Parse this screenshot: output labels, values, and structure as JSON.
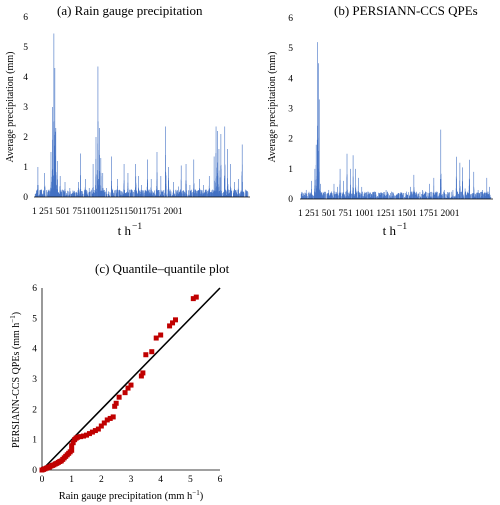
{
  "chart_data": [
    {
      "type": "bar",
      "title": "(a) Rain gauge precipitation",
      "ylabel": "Average precipitation (mm)",
      "xlabel": "t h",
      "xlabel_sup": "−1",
      "ylim": [
        0,
        6
      ],
      "yticks": [
        "0",
        "1",
        "2",
        "3",
        "4",
        "5",
        "6"
      ],
      "xticks": [
        "1",
        "251",
        "501",
        "751",
        "1001",
        "1251",
        "1501",
        "1751",
        "2001"
      ],
      "xtick_text": "1 251 501 7511001125115011751 2001",
      "color": "#4472C4",
      "x_max": 2200,
      "peaks": [
        [
          30,
          1.0
        ],
        [
          100,
          0.8
        ],
        [
          165,
          1.5
        ],
        [
          180,
          3.0
        ],
        [
          195,
          5.45
        ],
        [
          205,
          4.3
        ],
        [
          215,
          2.3
        ],
        [
          230,
          1.2
        ],
        [
          260,
          0.7
        ],
        [
          310,
          0.5
        ],
        [
          360,
          0.3
        ],
        [
          450,
          0.5
        ],
        [
          470,
          1.45
        ],
        [
          520,
          0.6
        ],
        [
          560,
          0.3
        ],
        [
          600,
          1.1
        ],
        [
          630,
          2.0
        ],
        [
          650,
          4.35
        ],
        [
          665,
          2.3
        ],
        [
          680,
          1.3
        ],
        [
          700,
          0.8
        ],
        [
          740,
          0.3
        ],
        [
          790,
          1.35
        ],
        [
          850,
          0.6
        ],
        [
          920,
          1.1
        ],
        [
          960,
          0.8
        ],
        [
          1040,
          1.1
        ],
        [
          1070,
          0.7
        ],
        [
          1100,
          0.4
        ],
        [
          1160,
          1.25
        ],
        [
          1200,
          0.6
        ],
        [
          1260,
          1.5
        ],
        [
          1300,
          0.7
        ],
        [
          1350,
          2.35
        ],
        [
          1380,
          1.0
        ],
        [
          1430,
          0.5
        ],
        [
          1480,
          0.35
        ],
        [
          1510,
          1.05
        ],
        [
          1560,
          1.1
        ],
        [
          1600,
          0.4
        ],
        [
          1640,
          1.25
        ],
        [
          1700,
          0.6
        ],
        [
          1740,
          0.4
        ],
        [
          1800,
          0.7
        ],
        [
          1850,
          1.35
        ],
        [
          1870,
          2.35
        ],
        [
          1885,
          2.2
        ],
        [
          1900,
          1.6
        ],
        [
          1920,
          2.1
        ],
        [
          1960,
          2.35
        ],
        [
          1990,
          1.6
        ],
        [
          2020,
          1.1
        ],
        [
          2060,
          0.5
        ],
        [
          2100,
          0.6
        ],
        [
          2140,
          1.75
        ]
      ]
    },
    {
      "type": "bar",
      "title": "(b) PERSIANN-CCS QPEs",
      "ylabel": "Average precipitation (mm)",
      "xlabel": "t h",
      "xlabel_sup": "−1",
      "ylim": [
        0,
        6
      ],
      "yticks": [
        "0",
        "1",
        "2",
        "3",
        "4",
        "5",
        "6"
      ],
      "xticks": [
        "1",
        "251",
        "501",
        "751",
        "1001",
        "1251",
        "1501",
        "1751",
        "2001"
      ],
      "xtick_text": "1 251 501 751 1001 1251 1501 1751 2001",
      "color": "#4472C4",
      "x_max": 2200,
      "peaks": [
        [
          60,
          0.3
        ],
        [
          120,
          0.6
        ],
        [
          160,
          1.0
        ],
        [
          175,
          1.8
        ],
        [
          190,
          5.2
        ],
        [
          200,
          4.5
        ],
        [
          210,
          3.3
        ],
        [
          225,
          0.5
        ],
        [
          260,
          0.2
        ],
        [
          320,
          0.3
        ],
        [
          380,
          0.5
        ],
        [
          420,
          0.4
        ],
        [
          450,
          1.0
        ],
        [
          490,
          0.6
        ],
        [
          530,
          1.5
        ],
        [
          570,
          1.0
        ],
        [
          600,
          1.45
        ],
        [
          630,
          1.0
        ],
        [
          660,
          0.7
        ],
        [
          700,
          0.4
        ],
        [
          740,
          0.2
        ],
        [
          800,
          0.2
        ],
        [
          900,
          0.2
        ],
        [
          980,
          0.3
        ],
        [
          1030,
          0.2
        ],
        [
          1120,
          0.2
        ],
        [
          1200,
          0.2
        ],
        [
          1260,
          0.4
        ],
        [
          1300,
          0.8
        ],
        [
          1400,
          0.3
        ],
        [
          1480,
          0.5
        ],
        [
          1530,
          0.7
        ],
        [
          1560,
          0.2
        ],
        [
          1610,
          2.3
        ],
        [
          1650,
          0.3
        ],
        [
          1700,
          0.2
        ],
        [
          1750,
          0.3
        ],
        [
          1790,
          1.4
        ],
        [
          1830,
          1.2
        ],
        [
          1860,
          1.05
        ],
        [
          1890,
          0.35
        ],
        [
          1940,
          1.3
        ],
        [
          1990,
          0.9
        ],
        [
          2040,
          0.3
        ],
        [
          2090,
          0.3
        ],
        [
          2140,
          0.7
        ],
        [
          2170,
          0.4
        ]
      ]
    },
    {
      "type": "scatter",
      "title": "(c) Quantile–quantile plot",
      "xlabel": "Rain gauge precipitation (mm h",
      "xlabel_sup": "−1",
      "ylabel": "PERSIANN-CCS QPEs (mm h",
      "ylabel_sup": "−1",
      "xlim": [
        0,
        6
      ],
      "ylim": [
        0,
        6
      ],
      "xticks": [
        "0",
        "1",
        "2",
        "3",
        "4",
        "5",
        "6"
      ],
      "yticks": [
        "0",
        "1",
        "2",
        "3",
        "4",
        "5",
        "6"
      ],
      "marker_color": "#C00000",
      "reference_line": [
        [
          0,
          0
        ],
        [
          6,
          6
        ]
      ],
      "points": [
        [
          0.0,
          0.0
        ],
        [
          0.05,
          0.02
        ],
        [
          0.1,
          0.04
        ],
        [
          0.15,
          0.06
        ],
        [
          0.2,
          0.08
        ],
        [
          0.25,
          0.1
        ],
        [
          0.3,
          0.13
        ],
        [
          0.35,
          0.15
        ],
        [
          0.4,
          0.17
        ],
        [
          0.45,
          0.2
        ],
        [
          0.5,
          0.22
        ],
        [
          0.55,
          0.25
        ],
        [
          0.6,
          0.28
        ],
        [
          0.65,
          0.3
        ],
        [
          0.7,
          0.35
        ],
        [
          0.75,
          0.4
        ],
        [
          0.8,
          0.45
        ],
        [
          0.85,
          0.5
        ],
        [
          0.9,
          0.55
        ],
        [
          0.95,
          0.6
        ],
        [
          1.0,
          0.65
        ],
        [
          1.0,
          0.8
        ],
        [
          1.05,
          0.9
        ],
        [
          1.1,
          1.0
        ],
        [
          1.15,
          1.05
        ],
        [
          1.2,
          1.08
        ],
        [
          1.3,
          1.1
        ],
        [
          1.4,
          1.12
        ],
        [
          1.5,
          1.15
        ],
        [
          1.6,
          1.2
        ],
        [
          1.7,
          1.25
        ],
        [
          1.8,
          1.3
        ],
        [
          1.9,
          1.35
        ],
        [
          2.0,
          1.45
        ],
        [
          2.1,
          1.55
        ],
        [
          2.2,
          1.65
        ],
        [
          2.3,
          1.7
        ],
        [
          2.4,
          1.75
        ],
        [
          2.45,
          2.1
        ],
        [
          2.5,
          2.2
        ],
        [
          2.6,
          2.4
        ],
        [
          2.8,
          2.55
        ],
        [
          2.9,
          2.7
        ],
        [
          3.0,
          2.8
        ],
        [
          3.35,
          3.1
        ],
        [
          3.4,
          3.2
        ],
        [
          3.5,
          3.8
        ],
        [
          3.7,
          3.9
        ],
        [
          3.85,
          4.35
        ],
        [
          4.0,
          4.45
        ],
        [
          4.3,
          4.75
        ],
        [
          4.4,
          4.85
        ],
        [
          4.5,
          4.95
        ],
        [
          5.1,
          5.65
        ],
        [
          5.2,
          5.7
        ]
      ]
    }
  ]
}
